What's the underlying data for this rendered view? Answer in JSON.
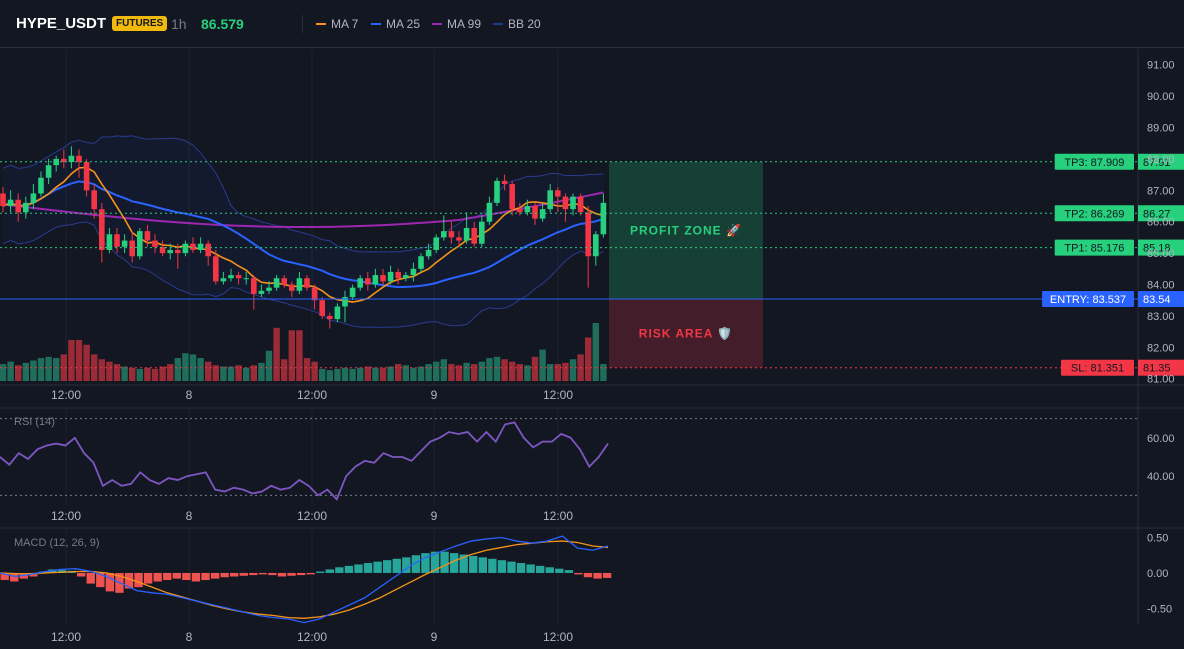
{
  "header": {
    "symbol": "HYPE_USDT",
    "badge": "FUTURES",
    "interval": "1h",
    "price": "86.579",
    "legend": [
      {
        "label": "MA 7",
        "color": "#f7931a"
      },
      {
        "label": "MA 25",
        "color": "#2962ff"
      },
      {
        "label": "MA 99",
        "color": "#9c27b0"
      },
      {
        "label": "BB 20",
        "color": "#1e3a8a"
      }
    ]
  },
  "colors": {
    "up": "#26d07c",
    "down": "#f23645",
    "vol_up": "#1f6e5b",
    "vol_down": "#9b2c37",
    "ma7": "#f7931a",
    "ma25": "#2962ff",
    "ma99": "#9c27b0",
    "bb": "#2a3a8f",
    "rsi": "#7e57c2",
    "macd": "#2962ff",
    "signal": "#f7931a",
    "hist_up": "#26a69a",
    "hist_down": "#ef5350",
    "tp": "#26d07c",
    "entry": "#2962ff",
    "sl": "#f23645"
  },
  "chart_data": [
    {
      "type": "candlestick",
      "ylim": [
        80.8,
        91.5
      ],
      "y_ticks": [
        "91.00",
        "90.00",
        "89.00",
        "88.00",
        "87.00",
        "86.00",
        "85.00",
        "84.00",
        "83.00",
        "82.00",
        "81.00"
      ],
      "x_ticks": [
        "12:00",
        "8",
        "12:00",
        "9",
        "12:00"
      ],
      "candles": [
        [
          86.9,
          86.5,
          87.1,
          86.3
        ],
        [
          86.5,
          86.7,
          87.0,
          86.3
        ],
        [
          86.7,
          86.3,
          86.9,
          86.0
        ],
        [
          86.3,
          86.6,
          86.8,
          86.1
        ],
        [
          86.6,
          86.9,
          87.2,
          86.4
        ],
        [
          86.9,
          87.4,
          87.6,
          86.8
        ],
        [
          87.4,
          87.8,
          88.0,
          87.2
        ],
        [
          87.8,
          88.0,
          88.1,
          87.6
        ],
        [
          88.0,
          87.9,
          88.3,
          87.7
        ],
        [
          87.9,
          88.1,
          88.4,
          87.7
        ],
        [
          88.1,
          87.9,
          88.3,
          87.4
        ],
        [
          87.9,
          87.0,
          88.0,
          86.8
        ],
        [
          87.0,
          86.4,
          87.2,
          86.1
        ],
        [
          86.4,
          85.1,
          86.6,
          84.7
        ],
        [
          85.1,
          85.6,
          85.8,
          85.0
        ],
        [
          85.6,
          85.2,
          85.8,
          85.0
        ],
        [
          85.2,
          85.4,
          85.6,
          85.0
        ],
        [
          85.4,
          84.9,
          85.7,
          84.7
        ],
        [
          84.9,
          85.7,
          85.8,
          84.8
        ],
        [
          85.7,
          85.4,
          85.9,
          85.2
        ],
        [
          85.4,
          85.2,
          85.6,
          85.0
        ],
        [
          85.2,
          85.0,
          85.4,
          84.9
        ],
        [
          85.0,
          85.1,
          85.3,
          84.8
        ],
        [
          85.1,
          85.0,
          85.3,
          84.5
        ],
        [
          85.0,
          85.3,
          85.4,
          84.9
        ],
        [
          85.3,
          85.1,
          85.5,
          85.0
        ],
        [
          85.1,
          85.3,
          85.5,
          85.0
        ],
        [
          85.3,
          84.9,
          85.4,
          84.6
        ],
        [
          84.9,
          84.1,
          85.1,
          84.0
        ],
        [
          84.1,
          84.2,
          84.4,
          84.0
        ],
        [
          84.2,
          84.3,
          84.5,
          84.1
        ],
        [
          84.3,
          84.2,
          84.4,
          84.0
        ],
        [
          84.2,
          84.2,
          84.4,
          84.0
        ],
        [
          84.2,
          83.7,
          84.3,
          83.2
        ],
        [
          83.7,
          83.8,
          84.0,
          83.6
        ],
        [
          83.8,
          83.9,
          84.1,
          83.7
        ],
        [
          83.9,
          84.2,
          84.3,
          83.8
        ],
        [
          84.2,
          84.0,
          84.3,
          83.9
        ],
        [
          84.0,
          83.8,
          84.1,
          83.6
        ],
        [
          83.8,
          84.2,
          84.4,
          83.7
        ],
        [
          84.2,
          83.9,
          84.3,
          83.8
        ],
        [
          83.9,
          83.5,
          84.0,
          83.2
        ],
        [
          83.5,
          83.0,
          83.6,
          82.9
        ],
        [
          83.0,
          82.9,
          83.1,
          82.6
        ],
        [
          82.9,
          83.3,
          83.4,
          82.8
        ],
        [
          83.3,
          83.6,
          83.8,
          82.8
        ],
        [
          83.6,
          83.9,
          84.0,
          83.5
        ],
        [
          83.9,
          84.2,
          84.3,
          83.8
        ],
        [
          84.2,
          84.0,
          84.4,
          83.8
        ],
        [
          84.0,
          84.3,
          84.5,
          83.9
        ],
        [
          84.3,
          84.1,
          84.5,
          84.0
        ],
        [
          84.1,
          84.4,
          84.6,
          84.0
        ],
        [
          84.4,
          84.2,
          84.5,
          84.0
        ],
        [
          84.2,
          84.3,
          84.4,
          84.1
        ],
        [
          84.3,
          84.5,
          84.7,
          84.1
        ],
        [
          84.5,
          84.9,
          85.0,
          84.4
        ],
        [
          84.9,
          85.1,
          85.3,
          84.8
        ],
        [
          85.1,
          85.5,
          85.6,
          85.0
        ],
        [
          85.5,
          85.7,
          86.2,
          85.4
        ],
        [
          85.7,
          85.5,
          86.0,
          85.3
        ],
        [
          85.5,
          85.4,
          85.7,
          85.2
        ],
        [
          85.4,
          85.8,
          86.3,
          85.3
        ],
        [
          85.8,
          85.3,
          86.0,
          85.2
        ],
        [
          85.3,
          86.0,
          86.2,
          85.2
        ],
        [
          86.0,
          86.6,
          86.8,
          85.9
        ],
        [
          86.6,
          87.3,
          87.4,
          86.5
        ],
        [
          87.3,
          87.2,
          87.5,
          87.0
        ],
        [
          87.2,
          86.4,
          87.3,
          86.2
        ],
        [
          86.4,
          86.3,
          86.6,
          86.2
        ],
        [
          86.3,
          86.5,
          86.7,
          86.2
        ],
        [
          86.5,
          86.1,
          86.6,
          85.9
        ],
        [
          86.1,
          86.4,
          86.6,
          86.0
        ],
        [
          86.4,
          87.0,
          87.2,
          86.3
        ],
        [
          87.0,
          86.8,
          87.1,
          86.3
        ],
        [
          86.8,
          86.4,
          86.9,
          86.0
        ],
        [
          86.4,
          86.8,
          86.9,
          86.2
        ],
        [
          86.8,
          86.3,
          86.9,
          86.2
        ],
        [
          86.3,
          84.9,
          86.5,
          83.9
        ],
        [
          84.9,
          85.6,
          85.7,
          84.6
        ],
        [
          85.6,
          86.6,
          86.9,
          85.5
        ]
      ],
      "volume": [
        14,
        16,
        13,
        15,
        17,
        19,
        20,
        19,
        22,
        34,
        34,
        30,
        22,
        18,
        16,
        14,
        12,
        11,
        10,
        11,
        10,
        12,
        14,
        19,
        23,
        22,
        19,
        16,
        13,
        12,
        12,
        13,
        11,
        13,
        15,
        25,
        44,
        18,
        42,
        42,
        19,
        16,
        10,
        9,
        10,
        11,
        10,
        11,
        12,
        11,
        11,
        12,
        14,
        13,
        11,
        12,
        14,
        16,
        18,
        14,
        13,
        15,
        14,
        16,
        19,
        20,
        18,
        16,
        14,
        13,
        20,
        26,
        14,
        14,
        15,
        18,
        22,
        36,
        48,
        14
      ],
      "volume_up": [
        1,
        1,
        0,
        1,
        1,
        1,
        1,
        1,
        0,
        0,
        0,
        0,
        0,
        0,
        0,
        0,
        1,
        0,
        1,
        0,
        0,
        0,
        0,
        1,
        1,
        1,
        1,
        0,
        0,
        1,
        1,
        0,
        1,
        0,
        1,
        1,
        0,
        0,
        0,
        0,
        0,
        0,
        1,
        1,
        1,
        1,
        1,
        1,
        0,
        1,
        0,
        1,
        0,
        1,
        1,
        1,
        1,
        1,
        1,
        0,
        0,
        1,
        0,
        1,
        1,
        1,
        0,
        0,
        0,
        1,
        0,
        1,
        1,
        0,
        0,
        1,
        0,
        0,
        1,
        1
      ],
      "levels": [
        {
          "label": "TP3: 87.909",
          "value": 87.909,
          "axis": "87.91",
          "type": "tp"
        },
        {
          "label": "TP2: 86.269",
          "value": 86.269,
          "axis": "86.27",
          "type": "tp"
        },
        {
          "label": "TP1: 85.176",
          "value": 85.176,
          "axis": "85.18",
          "type": "tp"
        },
        {
          "label": "ENTRY: 83.537",
          "value": 83.537,
          "axis": "83.54",
          "type": "entry"
        },
        {
          "label": "SL: 81.351",
          "value": 81.351,
          "axis": "81.35",
          "type": "sl"
        }
      ],
      "zones": {
        "profit_label": "PROFIT ZONE 🚀",
        "risk_label": "RISK AREA 🛡️",
        "top": 87.909,
        "entry": 83.537,
        "bottom": 81.351
      }
    },
    {
      "type": "line",
      "title": "RSI (14)",
      "ylim": [
        25,
        75
      ],
      "y_ticks": [
        "60.00",
        "40.00"
      ],
      "overbought": 70,
      "oversold": 30,
      "x_ticks": [
        "12:00",
        "8",
        "12:00",
        "9",
        "12:00"
      ],
      "values": [
        50,
        46,
        52,
        49,
        54,
        56,
        57,
        56,
        60,
        52,
        47,
        35,
        38,
        35,
        36,
        42,
        38,
        36,
        39,
        38,
        40,
        41,
        42,
        33,
        32,
        34,
        33,
        31,
        32,
        35,
        33,
        34,
        38,
        35,
        30,
        33,
        28,
        40,
        45,
        48,
        47,
        52,
        50,
        50,
        48,
        53,
        58,
        60,
        63,
        62,
        63,
        58,
        63,
        58,
        67,
        68,
        60,
        55,
        58,
        58,
        62,
        60,
        54,
        45,
        50,
        57
      ]
    },
    {
      "type": "bar_line",
      "title": "MACD (12, 26, 9)",
      "ylim": [
        -0.72,
        0.62
      ],
      "y_ticks": [
        "0.50",
        "0.00",
        "-0.50"
      ],
      "x_ticks": [
        "12:00",
        "8",
        "12:00",
        "9",
        "12:00"
      ],
      "macd": [
        0.0,
        -0.05,
        -0.02,
        0.02,
        0.05,
        0.06,
        0.02,
        -0.05,
        -0.15,
        -0.25,
        -0.28,
        -0.3,
        -0.35,
        -0.4,
        -0.45,
        -0.5,
        -0.55,
        -0.6,
        -0.63,
        -0.65,
        -0.7,
        -0.65,
        -0.55,
        -0.45,
        -0.35,
        -0.2,
        -0.05,
        0.1,
        0.22,
        0.3,
        0.38,
        0.45,
        0.48,
        0.5,
        0.45,
        0.42,
        0.45,
        0.52,
        0.35,
        0.32,
        0.38
      ],
      "signal": [
        0.0,
        -0.01,
        -0.01,
        0.0,
        0.01,
        0.02,
        0.02,
        0.0,
        -0.05,
        -0.12,
        -0.2,
        -0.28,
        -0.34,
        -0.4,
        -0.46,
        -0.51,
        -0.55,
        -0.58,
        -0.6,
        -0.63,
        -0.64,
        -0.62,
        -0.58,
        -0.52,
        -0.44,
        -0.35,
        -0.24,
        -0.13,
        -0.02,
        0.08,
        0.18,
        0.26,
        0.32,
        0.36,
        0.4,
        0.42,
        0.44,
        0.45,
        0.43,
        0.38,
        0.36
      ],
      "hist": [
        -0.1,
        -0.12,
        -0.08,
        -0.05,
        0.02,
        0.05,
        0.04,
        0.03,
        -0.05,
        -0.15,
        -0.2,
        -0.26,
        -0.28,
        -0.22,
        -0.2,
        -0.15,
        -0.12,
        -0.1,
        -0.08,
        -0.1,
        -0.12,
        -0.1,
        -0.08,
        -0.06,
        -0.05,
        -0.04,
        -0.03,
        -0.02,
        -0.03,
        -0.05,
        -0.04,
        -0.03,
        -0.02,
        0.02,
        0.05,
        0.08,
        0.1,
        0.12,
        0.14,
        0.16,
        0.18,
        0.2,
        0.22,
        0.25,
        0.28,
        0.3,
        0.3,
        0.28,
        0.26,
        0.24,
        0.22,
        0.2,
        0.18,
        0.16,
        0.14,
        0.12,
        0.1,
        0.08,
        0.06,
        0.04,
        -0.02,
        -0.06,
        -0.08,
        -0.07
      ]
    }
  ]
}
